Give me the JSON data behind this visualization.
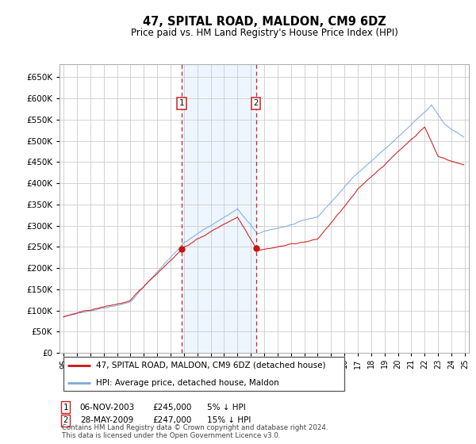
{
  "title": "47, SPITAL ROAD, MALDON, CM9 6DZ",
  "subtitle": "Price paid vs. HM Land Registry's House Price Index (HPI)",
  "hpi_color": "#7aaadd",
  "price_color": "#cc1111",
  "background_color": "#ffffff",
  "grid_color": "#cccccc",
  "highlight_bg": "#ddeeff",
  "ylim": [
    0,
    680000
  ],
  "ytick_step": 50000,
  "transactions": [
    {
      "num": 1,
      "date": "06-NOV-2003",
      "price": 245000,
      "pct": "5%",
      "direction": "↓",
      "year": 2003.84
    },
    {
      "num": 2,
      "date": "28-MAY-2009",
      "price": 247000,
      "pct": "15%",
      "direction": "↓",
      "year": 2009.38
    }
  ],
  "legend_label_red": "47, SPITAL ROAD, MALDON, CM9 6DZ (detached house)",
  "legend_label_blue": "HPI: Average price, detached house, Maldon",
  "footer": "Contains HM Land Registry data © Crown copyright and database right 2024.\nThis data is licensed under the Open Government Licence v3.0.",
  "x_start_year": 1995,
  "x_end_year": 2025
}
